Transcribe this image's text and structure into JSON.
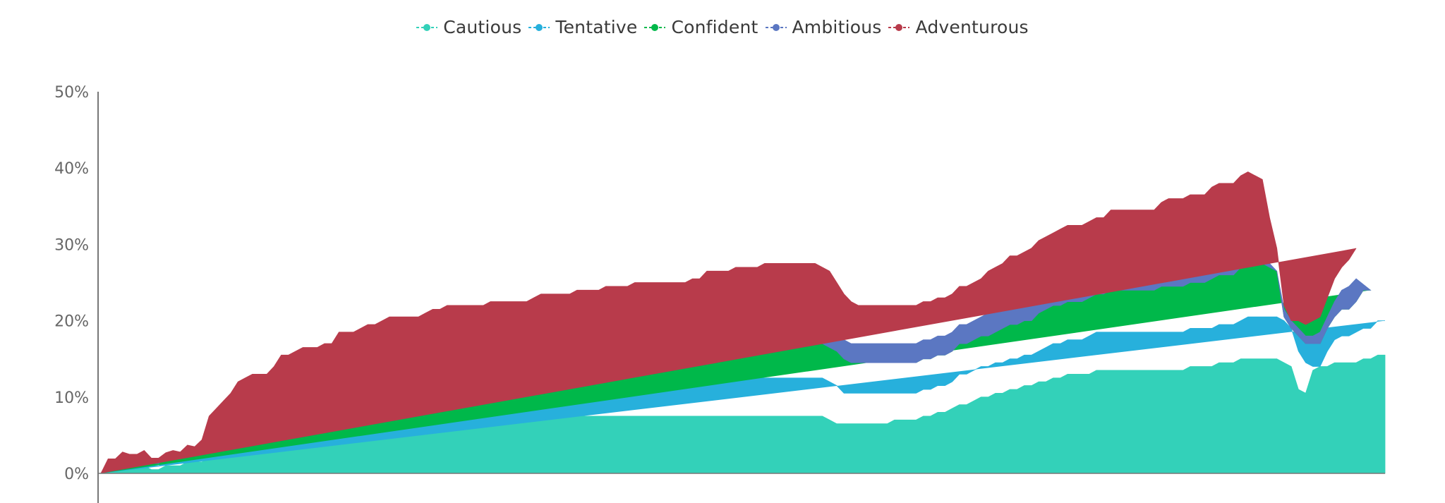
{
  "chart_data": {
    "type": "area",
    "stacked": true,
    "title": "",
    "xlabel": "",
    "ylabel": "",
    "ylim": [
      0,
      50
    ],
    "yticks": [
      "0%",
      "10%",
      "20%",
      "30%",
      "40%",
      "50%"
    ],
    "legend_position": "top-center",
    "series": [
      {
        "name": "Cautious",
        "color": "#33d1b9",
        "values": [
          0,
          1,
          1,
          1.5,
          1,
          1,
          1,
          0.5,
          0.5,
          1,
          1,
          1,
          1.5,
          1.5,
          1.5,
          2,
          2,
          2.5,
          3,
          3.5,
          4,
          4.5,
          5,
          5,
          5.5,
          6,
          5.5,
          5,
          5,
          5,
          5,
          5.5,
          5.5,
          6,
          6,
          6,
          6,
          6.5,
          6.5,
          6.5,
          7,
          7,
          7,
          7,
          7,
          7.5,
          7.5,
          7.5,
          7.5,
          7.5,
          7.5,
          7.5,
          7.5,
          7.5,
          7.5,
          7.5,
          7.5,
          7.5,
          7.5,
          7.5,
          7.5,
          7.5,
          7.5,
          7.5,
          7.5,
          7.5,
          7.5,
          7.5,
          7.5,
          7.5,
          7.5,
          7.5,
          7.5,
          7.5,
          7.5,
          7.5,
          7.5,
          7.5,
          7.5,
          7.5,
          7.5,
          7.5,
          7.5,
          7.5,
          7.5,
          7.5,
          7.5,
          7.5,
          7.5,
          7.5,
          7.5,
          7.5,
          7.5,
          7.5,
          7.5,
          7.5,
          7.5,
          7.5,
          7.5,
          7.5,
          7.5,
          7,
          6.5,
          6.5,
          6.5,
          6.5,
          6.5,
          6.5,
          6.5,
          6.5,
          7,
          7,
          7,
          7,
          7.5,
          7.5,
          8,
          8,
          8.5,
          9,
          9,
          9.5,
          10,
          10,
          10.5,
          10.5,
          11,
          11,
          11.5,
          11.5,
          12,
          12,
          12.5,
          12.5,
          13,
          13,
          13,
          13,
          13.5,
          13.5,
          13.5,
          13.5,
          13.5,
          13.5,
          13.5,
          13.5,
          13.5,
          13.5,
          13.5,
          13.5,
          13.5,
          14,
          14,
          14,
          14,
          14.5,
          14.5,
          14.5,
          15,
          15,
          15,
          15,
          15,
          15,
          14.5,
          14,
          11,
          10.5,
          13.5,
          14,
          14,
          14.5,
          14.5,
          14.5,
          14.5,
          15,
          15,
          15.5,
          15.5
        ]
      },
      {
        "name": "Tentative",
        "color": "#27b0dc",
        "values": [
          0,
          0.3,
          0.3,
          0.5,
          0.5,
          0.5,
          0.5,
          0.5,
          0.5,
          0.5,
          0.5,
          0.5,
          0.7,
          0.7,
          0.7,
          1.5,
          2,
          2,
          2,
          2.5,
          2.5,
          2.5,
          2.5,
          2.5,
          2.5,
          3,
          3,
          3,
          3,
          3,
          3,
          3,
          3,
          3,
          3,
          3,
          3,
          3,
          3,
          3.5,
          3.5,
          3.5,
          3.5,
          3.5,
          3.5,
          3.5,
          3.5,
          3.5,
          4,
          4,
          4,
          4,
          4,
          4,
          4,
          4,
          4,
          4,
          4,
          4,
          4,
          4.5,
          4.5,
          4.5,
          4.5,
          4.5,
          4.5,
          4.5,
          4.5,
          4.5,
          4.5,
          4.5,
          4.5,
          4.5,
          4.5,
          4.5,
          4.5,
          4.5,
          4.5,
          4.5,
          4.5,
          4.5,
          4.5,
          4.5,
          5,
          5,
          5,
          5,
          5,
          5,
          5,
          5,
          5,
          5,
          5,
          5,
          5,
          5,
          5,
          5,
          5,
          5,
          5,
          4,
          4,
          4,
          4,
          4,
          4,
          4,
          3.5,
          3.5,
          3.5,
          3.5,
          3.5,
          3.5,
          3.5,
          3.5,
          3.5,
          4,
          4,
          4,
          4,
          4,
          4,
          4,
          4,
          4,
          4,
          4,
          4,
          4.5,
          4.5,
          4.5,
          4.5,
          4.5,
          4.5,
          5,
          5,
          5,
          5,
          5,
          5,
          5,
          5,
          5,
          5,
          5,
          5,
          5,
          5,
          5,
          5,
          5,
          5,
          5,
          5,
          5,
          5,
          5.5,
          5.5,
          5.5,
          5.5,
          5.5,
          5.5,
          5,
          5,
          4,
          0.5,
          0,
          2,
          3,
          3.5,
          3.5,
          4,
          4,
          4,
          4.5,
          4.5,
          5,
          5
        ]
      },
      {
        "name": "Confident",
        "color": "#00b84a",
        "values": [
          0,
          0.2,
          0.2,
          0.3,
          0.3,
          0.3,
          0.3,
          0.3,
          0.3,
          0.5,
          0.5,
          0.5,
          0.5,
          0.5,
          1,
          1.5,
          1.5,
          2,
          2,
          2,
          2,
          2,
          2,
          2,
          2,
          2.5,
          2.5,
          2.5,
          3,
          3,
          3,
          3,
          3,
          3.5,
          3.5,
          3.5,
          3.5,
          3.5,
          3.5,
          3.5,
          3.5,
          3.5,
          3.5,
          3.5,
          3.5,
          3.5,
          4,
          4,
          4,
          4,
          4,
          4,
          4,
          4,
          4,
          4,
          4,
          4,
          4,
          4,
          4,
          4,
          4,
          4,
          4,
          4,
          4,
          4,
          4,
          4,
          4,
          4,
          4,
          4,
          4.5,
          4.5,
          4.5,
          4.5,
          4.5,
          4.5,
          4.5,
          4.5,
          5,
          5,
          5,
          5,
          5,
          5,
          5,
          5,
          5,
          5,
          5,
          5,
          5,
          5,
          5,
          5,
          5,
          5,
          4.5,
          4.5,
          4.5,
          4.5,
          4,
          4,
          4,
          4,
          4,
          4,
          4,
          4,
          4,
          4,
          4,
          4,
          4,
          4,
          4,
          4,
          4,
          4,
          4,
          4,
          4,
          4.5,
          4.5,
          4.5,
          4.5,
          4.5,
          5,
          5,
          5,
          5,
          5,
          5,
          5,
          5,
          5,
          5,
          5.5,
          5.5,
          5.5,
          5.5,
          5.5,
          5.5,
          5.5,
          6,
          6,
          6,
          6,
          6,
          6,
          6,
          6.5,
          6.5,
          6.5,
          6.5,
          7,
          7,
          7,
          7,
          6.5,
          6,
          0.5,
          0,
          2,
          2.5,
          3,
          3,
          3,
          3,
          3.5,
          3.5,
          4,
          5,
          5
        ]
      },
      {
        "name": "Ambitious",
        "color": "#5b77c2",
        "values": [
          0,
          0.1,
          0.1,
          0.2,
          0.2,
          0.2,
          0.2,
          0.2,
          0.2,
          0.2,
          0.3,
          0.3,
          0.3,
          0.3,
          0.5,
          0.5,
          0.5,
          0.5,
          1,
          1,
          1,
          1,
          1,
          1,
          1,
          1,
          1,
          1.5,
          1.5,
          1.5,
          1.5,
          1.5,
          1.5,
          1.5,
          1.5,
          1.5,
          1.5,
          1.5,
          1.5,
          1.5,
          1.5,
          1.5,
          1.5,
          1.5,
          1.5,
          1.5,
          1.5,
          1.5,
          1.5,
          1.5,
          1.5,
          1.5,
          1.5,
          1.5,
          2,
          2,
          2,
          2,
          2,
          2,
          2,
          2,
          2,
          2,
          2,
          2,
          2,
          2,
          2,
          2,
          2.5,
          2.5,
          2.5,
          2.5,
          2.5,
          2.5,
          2.5,
          2.5,
          2.5,
          2.5,
          2.5,
          2.5,
          2.5,
          2.5,
          3,
          3,
          3,
          3,
          3,
          3,
          3,
          3,
          3,
          3,
          3,
          3,
          3,
          3,
          3,
          3,
          3,
          3,
          2.5,
          2.5,
          2.5,
          2.5,
          2.5,
          2.5,
          2.5,
          2.5,
          2.5,
          2.5,
          2.5,
          2.5,
          2.5,
          2.5,
          2.5,
          2.5,
          2.5,
          2.5,
          2.5,
          2.5,
          2.5,
          3,
          3,
          3,
          3,
          3,
          3,
          3.5,
          3.5,
          3.5,
          3.5,
          3.5,
          3.5,
          3.5,
          3.5,
          3.5,
          3.5,
          3.5,
          3.5,
          3.5,
          3.5,
          3.5,
          3.5,
          3.5,
          3.5,
          3.5,
          4,
          4,
          4,
          4,
          4,
          4,
          4,
          4,
          4,
          4,
          4,
          4,
          4,
          4,
          0.5,
          0,
          1,
          1,
          1,
          1,
          1,
          1.5,
          1.5,
          2,
          2.5,
          3,
          3
        ]
      },
      {
        "name": "Adventurous",
        "color": "#b83b4b",
        "values": [
          0,
          0.3,
          0.3,
          0.3,
          0.5,
          0.5,
          1,
          0.5,
          0.5,
          0.5,
          0.7,
          0.5,
          0.7,
          0.5,
          0.7,
          2,
          2.5,
          2.5,
          2.5,
          3,
          3,
          3,
          2.5,
          2.5,
          3,
          3,
          3.5,
          4,
          4,
          4,
          4,
          4,
          4,
          4.5,
          4.5,
          4.5,
          5,
          5,
          5,
          5,
          5,
          5,
          5,
          5,
          5,
          5,
          5,
          5,
          5,
          5,
          5,
          5,
          5,
          5,
          5,
          5,
          5,
          5,
          5,
          5,
          5.5,
          5.5,
          5.5,
          5.5,
          5.5,
          5.5,
          6,
          6,
          6,
          6,
          6,
          6,
          6,
          6,
          6,
          6,
          6,
          6,
          6,
          6,
          6,
          6,
          6,
          6,
          6,
          6,
          6,
          6,
          6.5,
          6.5,
          6.5,
          6.5,
          7,
          7,
          7,
          7,
          7,
          7,
          7,
          7,
          7,
          7,
          6.5,
          6,
          5.5,
          5,
          5,
          5,
          5,
          5,
          5,
          5,
          5,
          5,
          5,
          5,
          5,
          5,
          5,
          5,
          5,
          5,
          5,
          5.5,
          5.5,
          5.5,
          6,
          6,
          6,
          6,
          6,
          6,
          6,
          6.5,
          6.5,
          6.5,
          6.5,
          6.5,
          6.5,
          6.5,
          7,
          7,
          7,
          7,
          7,
          7,
          7,
          7.5,
          7.5,
          7.5,
          7.5,
          7.5,
          7.5,
          7.5,
          8,
          8,
          8,
          8,
          8,
          8,
          7.5,
          7,
          6,
          3,
          0.5,
          0,
          1,
          1.5,
          2,
          2,
          2.5,
          3,
          3,
          3.5,
          4,
          4,
          4
        ]
      }
    ]
  }
}
